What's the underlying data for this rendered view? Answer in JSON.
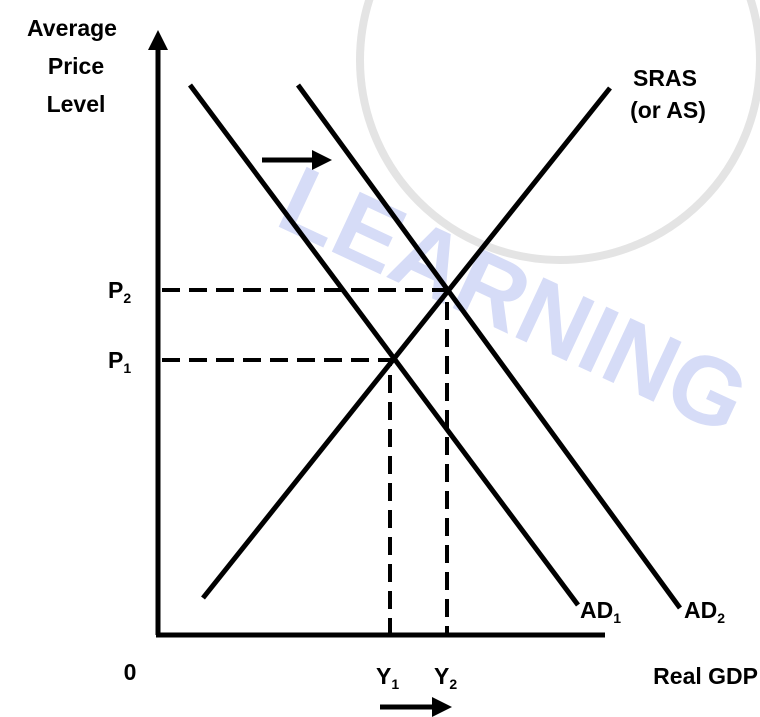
{
  "y_axis_label": [
    "Average",
    "Price",
    "Level"
  ],
  "x_axis_label": "Real GDP",
  "origin": "0",
  "curves": {
    "sras": [
      "SRAS",
      "(or AS)"
    ],
    "ad1": {
      "text": "AD",
      "sub": "1"
    },
    "ad2": {
      "text": "AD",
      "sub": "2"
    }
  },
  "price_levels": [
    {
      "text": "P",
      "sub": "1"
    },
    {
      "text": "P",
      "sub": "2"
    }
  ],
  "outputs": [
    {
      "text": "Y",
      "sub": "1"
    },
    {
      "text": "Y",
      "sub": "2"
    }
  ],
  "watermark": "LEARNING"
}
